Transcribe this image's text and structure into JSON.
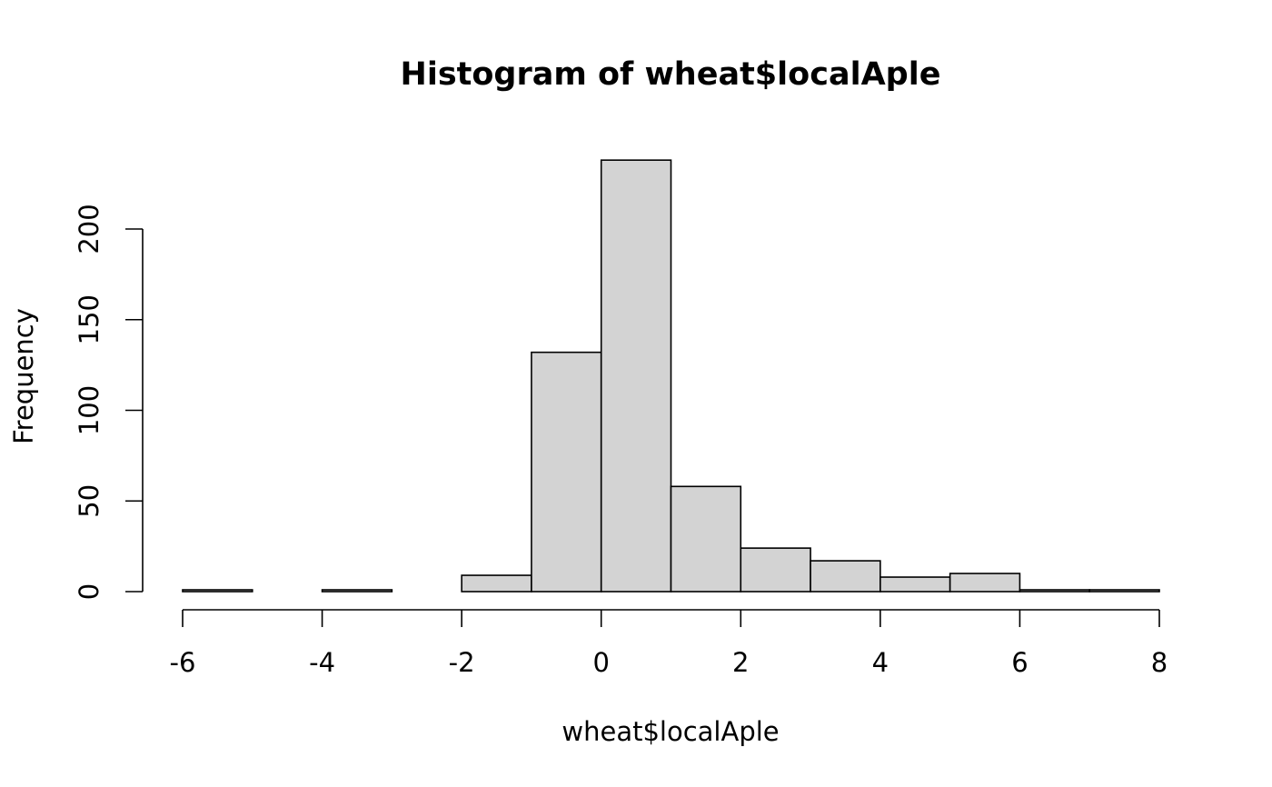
{
  "chart_data": {
    "type": "bar",
    "title": "Histogram of wheat$localAple",
    "xlabel": "wheat$localAple",
    "ylabel": "Frequency",
    "bin_edges": [
      -6,
      -5,
      -4,
      -3,
      -2,
      -1,
      0,
      1,
      2,
      3,
      4,
      5,
      6,
      7,
      8
    ],
    "values": [
      1,
      0,
      1,
      0,
      9,
      132,
      238,
      58,
      24,
      17,
      8,
      10,
      1,
      1
    ],
    "xlim": [
      -6,
      8
    ],
    "ylim": [
      0,
      238
    ],
    "x_ticks": [
      -6,
      -4,
      -2,
      0,
      2,
      4,
      6,
      8
    ],
    "y_ticks": [
      0,
      50,
      100,
      150,
      200
    ],
    "bar_color": "#d3d3d3",
    "grid": false
  }
}
